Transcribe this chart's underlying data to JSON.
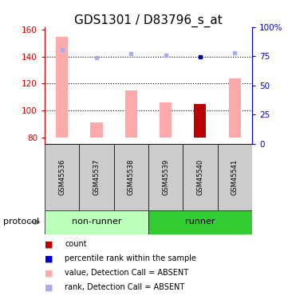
{
  "title": "GDS1301 / D83796_s_at",
  "samples": [
    "GSM45536",
    "GSM45537",
    "GSM45538",
    "GSM45539",
    "GSM45540",
    "GSM45541"
  ],
  "bar_values": [
    155,
    91,
    115,
    106,
    105,
    124
  ],
  "bar_colors": [
    "#ffaaaa",
    "#ffaaaa",
    "#ffaaaa",
    "#ffaaaa",
    "#bb0000",
    "#ffaaaa"
  ],
  "rank_values": [
    145,
    139,
    142,
    141,
    140,
    143
  ],
  "rank_colors": [
    "#aaaaee",
    "#aaaaee",
    "#aaaaee",
    "#aaaaee",
    "#0000cc",
    "#aaaaee"
  ],
  "ylim_left": [
    75,
    162
  ],
  "ylim_right": [
    0,
    100
  ],
  "yticks_left": [
    80,
    100,
    120,
    140,
    160
  ],
  "yticks_right": [
    0,
    25,
    50,
    75,
    100
  ],
  "bar_bottom": 80,
  "left_axis_color": "#cc0000",
  "right_axis_color": "#0000cc",
  "title_fontsize": 11,
  "tick_fontsize": 7.5,
  "non_runner_color": "#bbffbb",
  "runner_color": "#33cc33",
  "sample_box_color": "#cccccc",
  "legend_items": [
    {
      "label": "count",
      "color": "#bb0000"
    },
    {
      "label": "percentile rank within the sample",
      "color": "#0000cc"
    },
    {
      "label": "value, Detection Call = ABSENT",
      "color": "#ffaaaa"
    },
    {
      "label": "rank, Detection Call = ABSENT",
      "color": "#aaaaee"
    }
  ],
  "hline_values": [
    100,
    120,
    140
  ],
  "bar_width": 0.35
}
